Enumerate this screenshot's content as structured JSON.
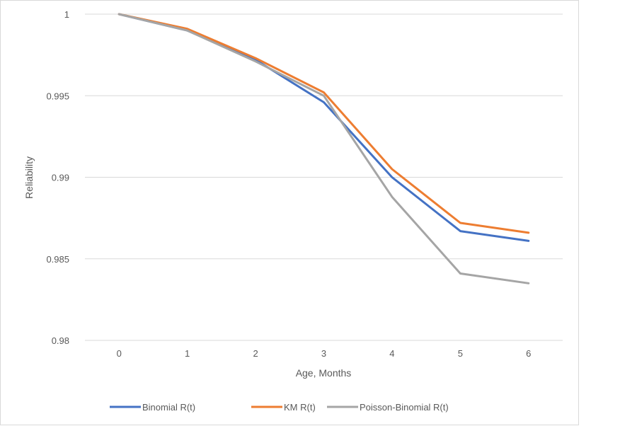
{
  "chart_data": {
    "type": "line",
    "title": "",
    "xlabel": "Age, Months",
    "ylabel": "Reliability",
    "x": [
      0,
      1,
      2,
      3,
      4,
      5,
      6
    ],
    "xticks": [
      "0",
      "1",
      "2",
      "3",
      "4",
      "5",
      "6"
    ],
    "yticks": [
      "0.98",
      "0.985",
      "0.99",
      "0.995",
      "1"
    ],
    "ylim": [
      0.98,
      1
    ],
    "grid": true,
    "legend": "bottom",
    "series": [
      {
        "name": "Binomial R(t)",
        "color": "#4472c4",
        "values": [
          1.0,
          0.999,
          0.9972,
          0.9946,
          0.99,
          0.9867,
          0.9861
        ]
      },
      {
        "name": "KM R(t)",
        "color": "#ed7d31",
        "values": [
          1.0,
          0.9991,
          0.9973,
          0.9952,
          0.9905,
          0.9872,
          0.9866
        ]
      },
      {
        "name": "Poisson-Binomial R(t)",
        "color": "#a5a5a5",
        "values": [
          1.0,
          0.999,
          0.9971,
          0.995,
          0.9888,
          0.9841,
          0.9835
        ]
      }
    ]
  }
}
